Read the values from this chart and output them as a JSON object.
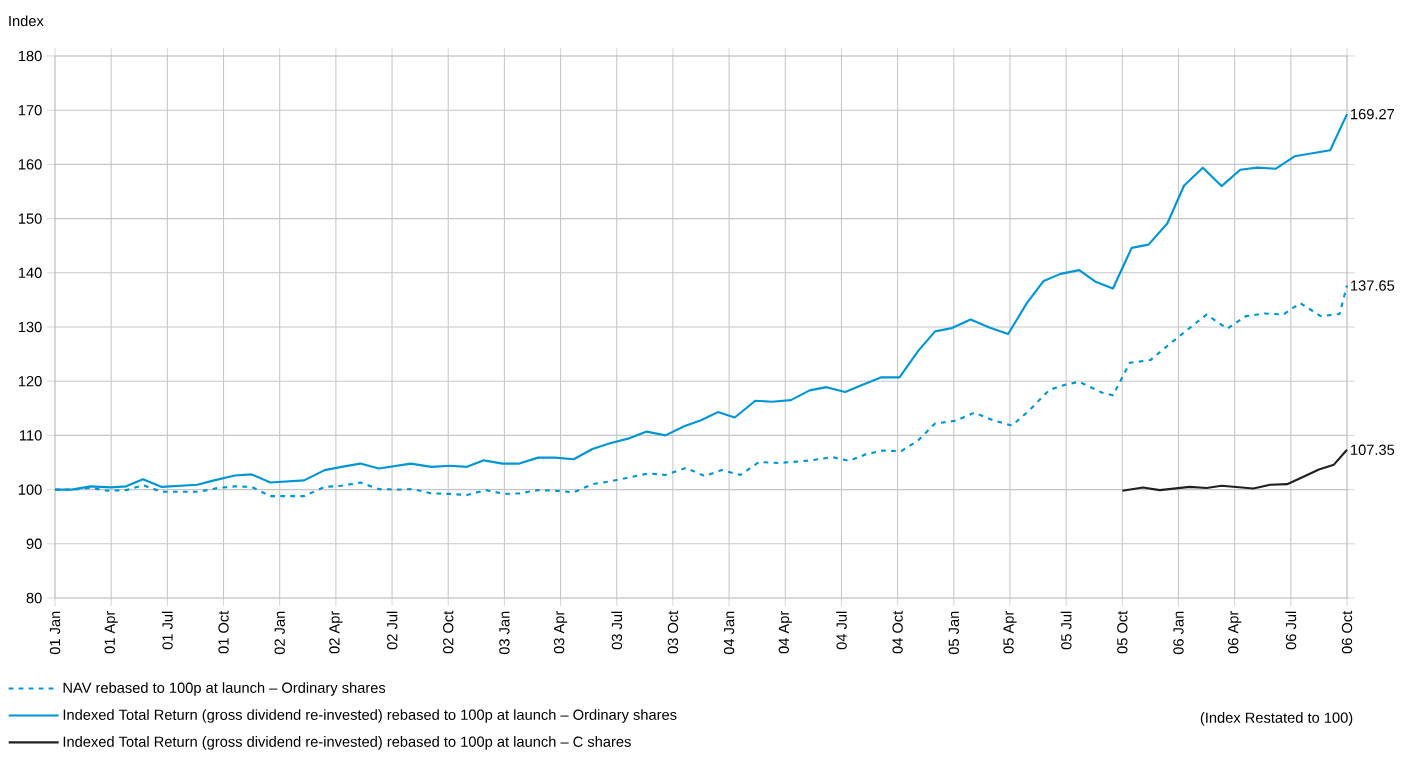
{
  "chart_data": {
    "type": "line",
    "ylabel": "Index",
    "xlim": [
      "2001-01",
      "2006-10"
    ],
    "ylim": [
      80,
      180
    ],
    "xticks": [
      {
        "value": "2001-01",
        "label": "01 Jan"
      },
      {
        "value": "2001-04",
        "label": "01 Apr"
      },
      {
        "value": "2001-07",
        "label": "01 Jul"
      },
      {
        "value": "2001-10",
        "label": "01 Oct"
      },
      {
        "value": "2002-01",
        "label": "02 Jan"
      },
      {
        "value": "2002-04",
        "label": "02 Apr"
      },
      {
        "value": "2002-07",
        "label": "02 Jul"
      },
      {
        "value": "2002-10",
        "label": "02 Oct"
      },
      {
        "value": "2003-01",
        "label": "03 Jan"
      },
      {
        "value": "2003-04",
        "label": "03 Apr"
      },
      {
        "value": "2003-07",
        "label": "03 Jul"
      },
      {
        "value": "2003-10",
        "label": "03 Oct"
      },
      {
        "value": "2004-01",
        "label": "04 Jan"
      },
      {
        "value": "2004-04",
        "label": "04 Apr"
      },
      {
        "value": "2004-07",
        "label": "04 Jul"
      },
      {
        "value": "2004-10",
        "label": "04 Oct"
      },
      {
        "value": "2005-01",
        "label": "05 Jan"
      },
      {
        "value": "2005-04",
        "label": "05 Apr"
      },
      {
        "value": "2005-07",
        "label": "05 Jul"
      },
      {
        "value": "2005-10",
        "label": "05 Oct"
      },
      {
        "value": "2006-01",
        "label": "06 Jan"
      },
      {
        "value": "2006-04",
        "label": "06 Apr"
      },
      {
        "value": "2006-07",
        "label": "06 Jul"
      },
      {
        "value": "2006-10",
        "label": "06 Oct"
      }
    ],
    "yticks": [
      80,
      90,
      100,
      110,
      120,
      130,
      140,
      150,
      160,
      170,
      180
    ],
    "grid": true,
    "legend": "bottom left",
    "series": [
      {
        "name": "NAV rebased to 100p at launch – Ordinary shares",
        "color": "#0096d6",
        "line_style": "dashed",
        "x": [
          "2001-01-01",
          "2001-01-28",
          "2001-02-28",
          "2001-03-25",
          "2001-04-25",
          "2001-05-22",
          "2001-06-22",
          "2001-07-22",
          "2001-08-22",
          "2001-09-22",
          "2001-10-19",
          "2001-11-16",
          "2001-12-16",
          "2002-01-13",
          "2002-02-10",
          "2002-03-13",
          "2002-04-10",
          "2002-05-10",
          "2002-06-10",
          "2002-07-10",
          "2002-08-04",
          "2002-09-04",
          "2002-10-04",
          "2002-11-01",
          "2002-12-01",
          "2003-01-01",
          "2003-01-25",
          "2003-02-25",
          "2003-03-22",
          "2003-04-22",
          "2003-05-22",
          "2003-06-19",
          "2003-07-19",
          "2003-08-22",
          "2003-09-19",
          "2003-10-22",
          "2003-11-22",
          "2003-12-19",
          "2004-01-19",
          "2004-02-19",
          "2004-03-19",
          "2004-04-13",
          "2004-05-13",
          "2004-06-16",
          "2004-07-13",
          "2004-08-10",
          "2004-09-07",
          "2004-10-07",
          "2004-11-04",
          "2004-12-01",
          "2005-01-04",
          "2005-02-04",
          "2005-03-04",
          "2005-04-04",
          "2005-05-01",
          "2005-06-04",
          "2005-06-28",
          "2005-07-22",
          "2005-08-28",
          "2005-09-16",
          "2005-10-13",
          "2005-11-16",
          "2005-12-13",
          "2006-01-10",
          "2006-02-16",
          "2006-03-19",
          "2006-04-19",
          "2006-05-19",
          "2006-06-19",
          "2006-07-16",
          "2006-08-19",
          "2006-09-19",
          "2006-10-01"
        ],
        "values": [
          100.0,
          100.0,
          100.3,
          99.8,
          99.9,
          100.8,
          99.6,
          99.6,
          99.6,
          100.3,
          100.6,
          100.5,
          98.8,
          98.8,
          98.8,
          100.5,
          100.7,
          101.3,
          100.1,
          100.0,
          100.1,
          99.3,
          99.2,
          99.0,
          99.9,
          99.2,
          99.3,
          99.9,
          99.8,
          99.5,
          101.0,
          101.5,
          102.2,
          103.0,
          102.7,
          104.0,
          102.5,
          103.6,
          102.7,
          105.1,
          104.9,
          105.1,
          105.4,
          106.0,
          105.3,
          106.5,
          107.2,
          107.1,
          109.1,
          112.2,
          112.7,
          114.2,
          112.8,
          111.8,
          114.5,
          118.4,
          119.3,
          119.9,
          117.9,
          117.4,
          123.4,
          123.9,
          126.5,
          129.0,
          132.3,
          129.7,
          132.0,
          132.5,
          132.3,
          134.4,
          132.0,
          132.4,
          137.65
        ]
      },
      {
        "name": "Indexed Total Return (gross dividend re-invested) rebased to 100p at launch – Ordinary shares",
        "color": "#0096d6",
        "line_style": "solid",
        "x": [
          "2001-01-01",
          "2001-01-28",
          "2001-02-28",
          "2001-04-01",
          "2001-04-25",
          "2001-05-22",
          "2001-06-22",
          "2001-08-19",
          "2001-09-16",
          "2001-10-19",
          "2001-11-16",
          "2001-12-16",
          "2002-02-10",
          "2002-03-13",
          "2002-04-10",
          "2002-05-10",
          "2002-06-10",
          "2002-08-01",
          "2002-09-04",
          "2002-10-04",
          "2002-11-01",
          "2002-11-28",
          "2002-12-28",
          "2003-01-25",
          "2003-02-25",
          "2003-03-22",
          "2003-04-22",
          "2003-05-22",
          "2003-06-19",
          "2003-07-19",
          "2003-08-19",
          "2003-09-19",
          "2003-10-19",
          "2003-11-16",
          "2003-12-13",
          "2004-01-10",
          "2004-02-13",
          "2004-03-10",
          "2004-04-10",
          "2004-05-10",
          "2004-06-07",
          "2004-07-07",
          "2004-08-04",
          "2004-09-04",
          "2004-10-04",
          "2004-11-04",
          "2004-12-01",
          "2004-12-28",
          "2005-01-28",
          "2005-02-28",
          "2005-03-28",
          "2005-04-28",
          "2005-05-25",
          "2005-06-22",
          "2005-07-22",
          "2005-08-19",
          "2005-09-16",
          "2005-10-16",
          "2005-11-13",
          "2005-12-13",
          "2006-01-10",
          "2006-02-10",
          "2006-03-10",
          "2006-04-10",
          "2006-05-07",
          "2006-06-07",
          "2006-07-07",
          "2006-09-04",
          "2006-10-01"
        ],
        "values": [
          100.0,
          100.0,
          100.6,
          100.4,
          100.6,
          101.9,
          100.5,
          100.9,
          101.7,
          102.6,
          102.8,
          101.3,
          101.7,
          103.6,
          104.2,
          104.8,
          103.9,
          104.8,
          104.2,
          104.4,
          104.2,
          105.4,
          104.8,
          104.8,
          105.9,
          105.9,
          105.6,
          107.5,
          108.5,
          109.4,
          110.7,
          110.0,
          111.7,
          112.8,
          114.3,
          113.3,
          116.4,
          116.2,
          116.5,
          118.3,
          118.9,
          118.0,
          119.3,
          120.7,
          120.7,
          125.6,
          129.2,
          129.8,
          131.4,
          129.9,
          128.7,
          134.4,
          138.5,
          139.8,
          140.5,
          138.3,
          137.1,
          144.6,
          145.2,
          149.1,
          156.1,
          159.4,
          156.0,
          159.0,
          159.4,
          159.2,
          161.5,
          162.6,
          169.27
        ]
      },
      {
        "name": "Indexed Total Return (gross dividend re-invested) rebased to 100p at launch – C shares",
        "color": "#231f20",
        "line_style": "solid",
        "x": [
          "2005-10-01",
          "2005-11-04",
          "2005-12-01",
          "2006-01-19",
          "2006-02-16",
          "2006-03-10",
          "2006-05-01",
          "2006-05-28",
          "2006-06-25",
          "2006-07-16",
          "2006-08-16",
          "2006-09-10",
          "2006-10-01"
        ],
        "values": [
          99.8,
          100.4,
          99.9,
          100.5,
          100.3,
          100.7,
          100.2,
          100.9,
          101.0,
          102.1,
          103.7,
          104.6,
          107.35
        ]
      }
    ],
    "annotations": [
      {
        "text": "169.27",
        "x": "2006-10",
        "y": 169.27
      },
      {
        "text": "137.65",
        "x": "2006-10",
        "y": 137.65
      },
      {
        "text": "107.35",
        "x": "2006-10",
        "y": 107.35
      },
      "(Index Restated to 100)"
    ]
  }
}
